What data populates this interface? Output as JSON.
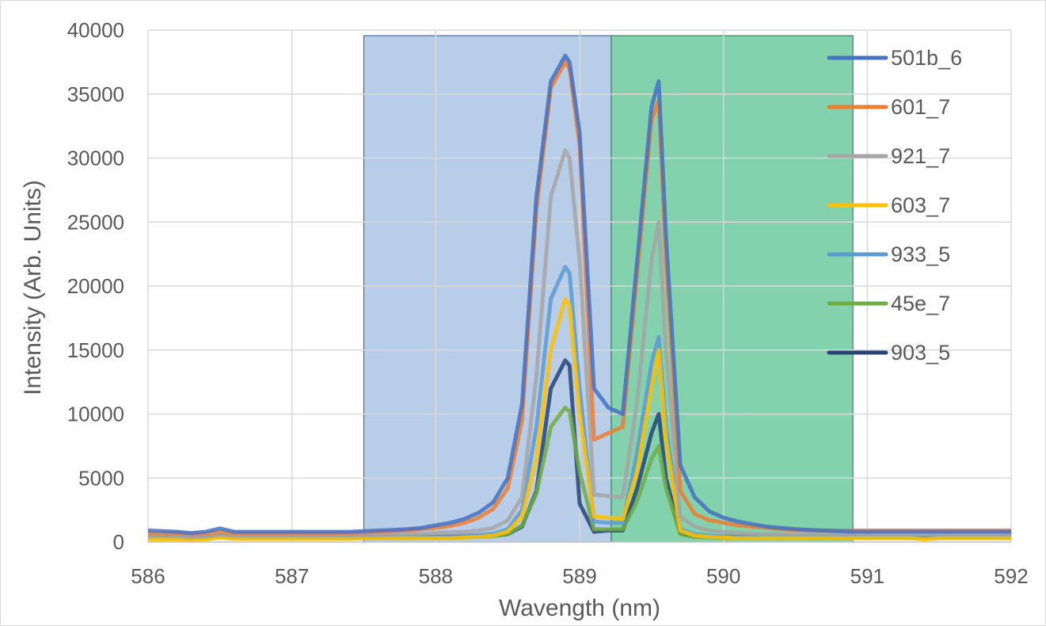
{
  "chart_data": {
    "type": "line",
    "title": "",
    "xlabel": "Wavength (nm)",
    "ylabel": "Intensity (Arb. Units)",
    "xlim": [
      586,
      592
    ],
    "ylim": [
      0,
      40000
    ],
    "xticks": [
      586,
      587,
      588,
      589,
      590,
      591,
      592
    ],
    "yticks": [
      0,
      5000,
      10000,
      15000,
      20000,
      25000,
      30000,
      35000,
      40000
    ],
    "grid": true,
    "legend_position": "right",
    "highlight_bands": [
      {
        "x0": 587.5,
        "x1": 589.22,
        "color": "#9dbade",
        "opacity": 0.72
      },
      {
        "x0": 589.22,
        "x1": 590.9,
        "color": "#4ebf8a",
        "opacity": 0.7
      }
    ],
    "x": [
      586.0,
      586.1,
      586.2,
      586.3,
      586.4,
      586.5,
      586.6,
      586.7,
      586.8,
      586.9,
      587.0,
      587.1,
      587.2,
      587.3,
      587.4,
      587.5,
      587.6,
      587.7,
      587.8,
      587.9,
      588.0,
      588.1,
      588.2,
      588.3,
      588.4,
      588.5,
      588.6,
      588.7,
      588.8,
      588.9,
      588.93,
      589.0,
      589.1,
      589.2,
      589.3,
      589.4,
      589.5,
      589.55,
      589.6,
      589.7,
      589.8,
      589.9,
      590.0,
      590.1,
      590.2,
      590.3,
      590.4,
      590.5,
      590.6,
      590.7,
      590.8,
      590.9,
      591.0,
      591.1,
      591.2,
      591.3,
      591.4,
      591.5,
      591.6,
      591.7,
      591.8,
      591.9,
      592.0
    ],
    "series": [
      {
        "name": "501b_6",
        "color": "#4472c4",
        "values": [
          900,
          850,
          800,
          700,
          800,
          1050,
          800,
          800,
          800,
          800,
          800,
          800,
          800,
          800,
          800,
          850,
          900,
          950,
          1000,
          1100,
          1300,
          1500,
          1800,
          2300,
          3100,
          5000,
          10800,
          27000,
          36000,
          38000,
          37500,
          32000,
          12000,
          10500,
          10000,
          22000,
          34000,
          36000,
          24000,
          6000,
          3500,
          2400,
          1900,
          1600,
          1400,
          1200,
          1100,
          1000,
          950,
          900,
          850,
          800,
          800,
          800,
          800,
          800,
          800,
          800,
          800,
          800,
          800,
          800,
          800
        ]
      },
      {
        "name": "601_7",
        "color": "#ed7d31",
        "values": [
          700,
          700,
          700,
          600,
          650,
          800,
          700,
          700,
          700,
          700,
          700,
          700,
          700,
          700,
          700,
          750,
          800,
          850,
          900,
          1000,
          1100,
          1250,
          1500,
          1900,
          2600,
          4200,
          9500,
          26000,
          35500,
          37500,
          37000,
          31000,
          8000,
          8500,
          9000,
          21000,
          33000,
          34500,
          22000,
          4000,
          2200,
          1700,
          1500,
          1300,
          1200,
          1100,
          1000,
          950,
          900,
          900,
          900,
          900,
          900,
          900,
          900,
          900,
          900,
          900,
          900,
          900,
          900,
          900,
          900
        ]
      },
      {
        "name": "921_7",
        "color": "#a5a5a5",
        "values": [
          500,
          500,
          500,
          400,
          450,
          600,
          500,
          500,
          500,
          500,
          500,
          500,
          500,
          500,
          500,
          550,
          550,
          600,
          600,
          650,
          700,
          750,
          800,
          900,
          1100,
          1700,
          3500,
          13000,
          27000,
          30600,
          30000,
          22000,
          3700,
          3600,
          3500,
          11000,
          22000,
          25000,
          15000,
          2000,
          1200,
          900,
          800,
          700,
          650,
          600,
          600,
          600,
          600,
          600,
          600,
          600,
          600,
          600,
          600,
          600,
          600,
          600,
          600,
          600,
          600,
          600,
          600
        ]
      },
      {
        "name": "603_7",
        "color": "#ffc000",
        "values": [
          200,
          200,
          200,
          150,
          200,
          350,
          250,
          250,
          250,
          250,
          250,
          250,
          250,
          250,
          250,
          300,
          300,
          300,
          300,
          300,
          300,
          300,
          350,
          400,
          500,
          800,
          2000,
          6500,
          15000,
          19000,
          18500,
          10000,
          2000,
          1900,
          1800,
          5500,
          12000,
          15000,
          8000,
          900,
          500,
          400,
          350,
          300,
          300,
          300,
          300,
          300,
          300,
          300,
          300,
          300,
          300,
          300,
          300,
          300,
          200,
          300,
          300,
          300,
          300,
          300,
          300
        ]
      },
      {
        "name": "933_5",
        "color": "#5b9bd5",
        "values": [
          400,
          400,
          400,
          350,
          400,
          500,
          400,
          400,
          400,
          400,
          400,
          400,
          400,
          400,
          400,
          450,
          450,
          450,
          450,
          450,
          450,
          450,
          500,
          550,
          650,
          1000,
          2500,
          9000,
          19000,
          21500,
          21000,
          12000,
          1600,
          1500,
          1500,
          7000,
          14000,
          16000,
          9000,
          1000,
          600,
          500,
          450,
          450,
          450,
          450,
          450,
          450,
          450,
          450,
          450,
          450,
          450,
          450,
          450,
          450,
          450,
          450,
          450,
          450,
          450,
          450,
          450
        ]
      },
      {
        "name": "45e_7",
        "color": "#70ad47",
        "values": [
          300,
          300,
          300,
          250,
          300,
          400,
          300,
          300,
          300,
          300,
          300,
          300,
          300,
          300,
          300,
          320,
          320,
          320,
          320,
          320,
          320,
          320,
          350,
          400,
          450,
          600,
          1300,
          3800,
          9000,
          10500,
          10200,
          5500,
          1000,
          1000,
          1000,
          3200,
          6500,
          7500,
          4200,
          600,
          400,
          350,
          330,
          320,
          320,
          320,
          320,
          320,
          320,
          320,
          320,
          320,
          320,
          320,
          320,
          320,
          320,
          320,
          320,
          320,
          320,
          320,
          320
        ]
      },
      {
        "name": "903_5",
        "color": "#264478",
        "values": [
          400,
          400,
          400,
          300,
          400,
          500,
          400,
          400,
          400,
          400,
          400,
          400,
          400,
          400,
          400,
          400,
          400,
          400,
          400,
          400,
          400,
          400,
          400,
          450,
          500,
          600,
          1200,
          4000,
          12000,
          14200,
          13800,
          3000,
          800,
          900,
          900,
          4200,
          8500,
          10000,
          5000,
          700,
          450,
          400,
          400,
          400,
          400,
          400,
          400,
          400,
          400,
          400,
          400,
          400,
          400,
          400,
          400,
          400,
          400,
          400,
          400,
          400,
          400,
          400,
          400
        ]
      }
    ]
  }
}
